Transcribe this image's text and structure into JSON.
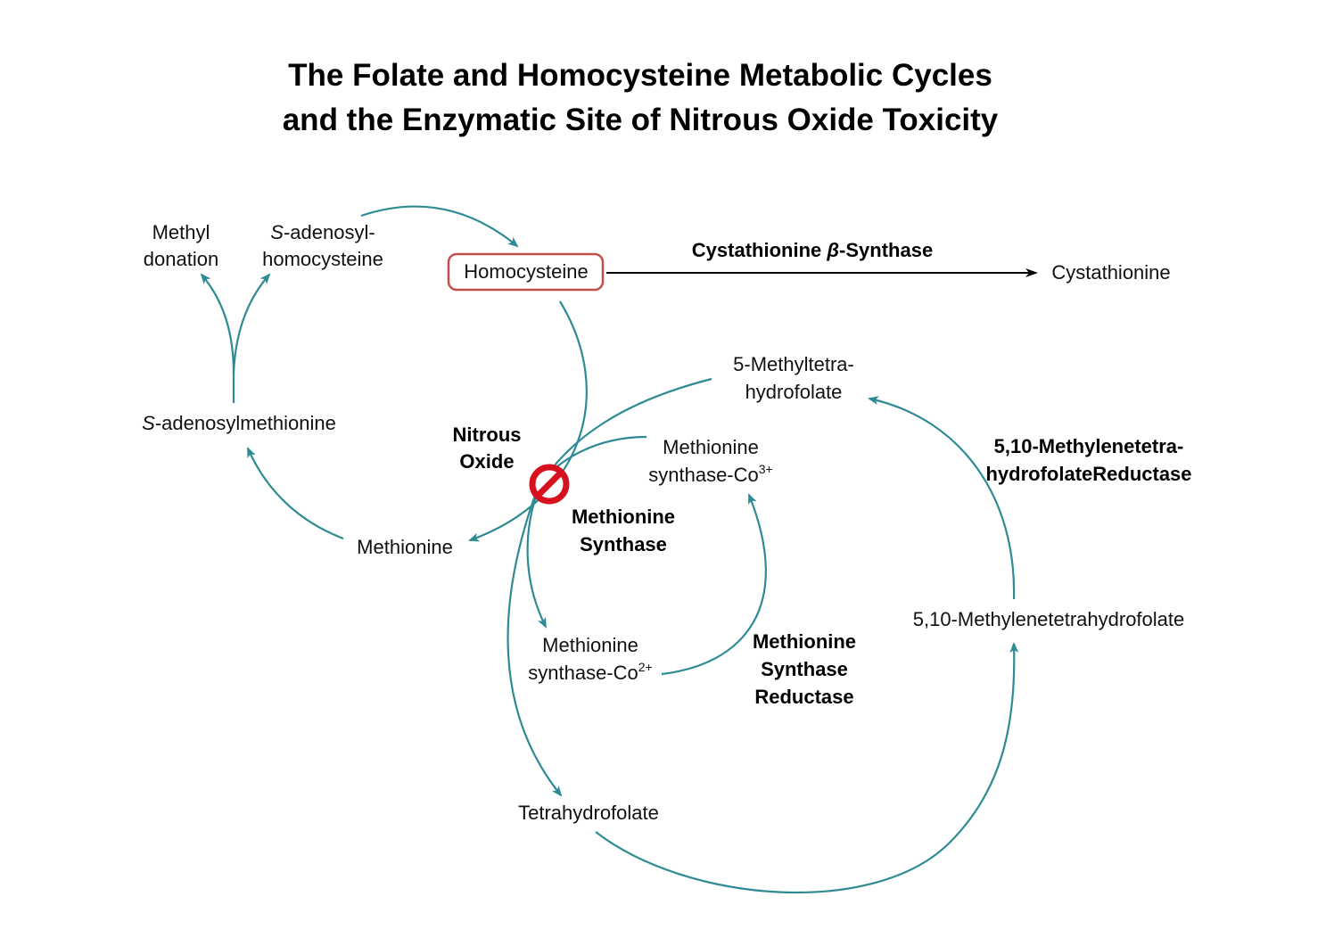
{
  "title": {
    "line1": "The Folate and Homocysteine Metabolic Cycles",
    "line2": "and the Enzymatic Site of Nitrous Oxide Toxicity"
  },
  "nodes": {
    "methyl_donation": {
      "line1": "Methyl",
      "line2": "donation"
    },
    "s_adenosylhomocysteine": {
      "italic": "S",
      "line1": "-adenosyl-",
      "line2": "homocysteine"
    },
    "homocysteine": "Homocysteine",
    "cystathionine": "Cystathionine",
    "s_adenosylmethionine": {
      "italic": "S",
      "rest": "-adenosylmethionine"
    },
    "methionine": "Methionine",
    "five_methyl_thf": {
      "line1": "5-Methyltetra-",
      "line2": "hydrofolate"
    },
    "ms_co3": {
      "line1": "Methionine",
      "line2": "synthase-Co",
      "sup": "3+"
    },
    "ms_co2": {
      "line1": "Methionine",
      "line2": "synthase-Co",
      "sup": "2+"
    },
    "methylene_thf": "5,10-Methylenetetrahydrofolate",
    "tetrahydrofolate": "Tetrahydrofolate"
  },
  "enzymes": {
    "cbs": {
      "pre": "Cystathionine ",
      "greek": "β",
      "post": "-Synthase"
    },
    "nitrous_oxide": {
      "line1": "Nitrous",
      "line2": "Oxide"
    },
    "methionine_synthase": {
      "line1": "Methionine",
      "line2": "Synthase"
    },
    "ms_reductase": {
      "line1": "Methionine",
      "line2": "Synthase",
      "line3": "Reductase"
    },
    "mthfr": {
      "line1": "5,10-Methylenetetra-",
      "line2": "hydrofolateReductase"
    }
  },
  "colors": {
    "arc": "#2e8b94",
    "highlight_box": "#c0504d",
    "inhibit": "#d7101f",
    "reaction_arrow": "#000000"
  },
  "icons": {
    "inhibition": "no-entry-icon"
  }
}
